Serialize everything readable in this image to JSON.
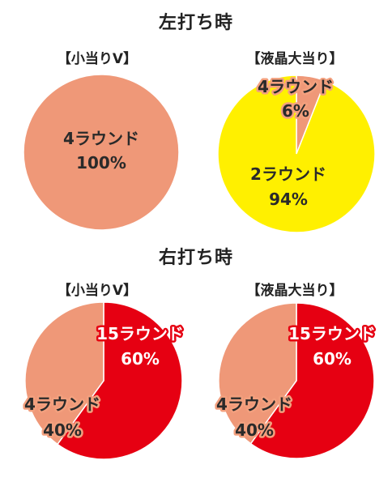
{
  "sections": [
    {
      "title": "左打ち時"
    },
    {
      "title": "右打ち時"
    }
  ],
  "colors": {
    "salmon": "#ef9878",
    "yellow": "#fff000",
    "red": "#e60012"
  },
  "chart_data": [
    {
      "type": "pie",
      "section": "左打ち時",
      "label": "【小当りV】",
      "slices": [
        {
          "name": "4ラウンド",
          "value": 100,
          "label": "100%",
          "color": "#ef9878"
        }
      ]
    },
    {
      "type": "pie",
      "section": "左打ち時",
      "label": "【液晶大当り】",
      "slices": [
        {
          "name": "4ラウンド",
          "value": 6,
          "label": "6%",
          "color": "#ef9878"
        },
        {
          "name": "2ラウンド",
          "value": 94,
          "label": "94%",
          "color": "#fff000"
        }
      ]
    },
    {
      "type": "pie",
      "section": "右打ち時",
      "label": "【小当りV】",
      "slices": [
        {
          "name": "15ラウンド",
          "value": 60,
          "label": "60%",
          "color": "#e60012"
        },
        {
          "name": "4ラウンド",
          "value": 40,
          "label": "40%",
          "color": "#ef9878"
        }
      ]
    },
    {
      "type": "pie",
      "section": "右打ち時",
      "label": "【液晶大当り】",
      "slices": [
        {
          "name": "15ラウンド",
          "value": 60,
          "label": "60%",
          "color": "#e60012"
        },
        {
          "name": "4ラウンド",
          "value": 40,
          "label": "40%",
          "color": "#ef9878"
        }
      ]
    }
  ]
}
